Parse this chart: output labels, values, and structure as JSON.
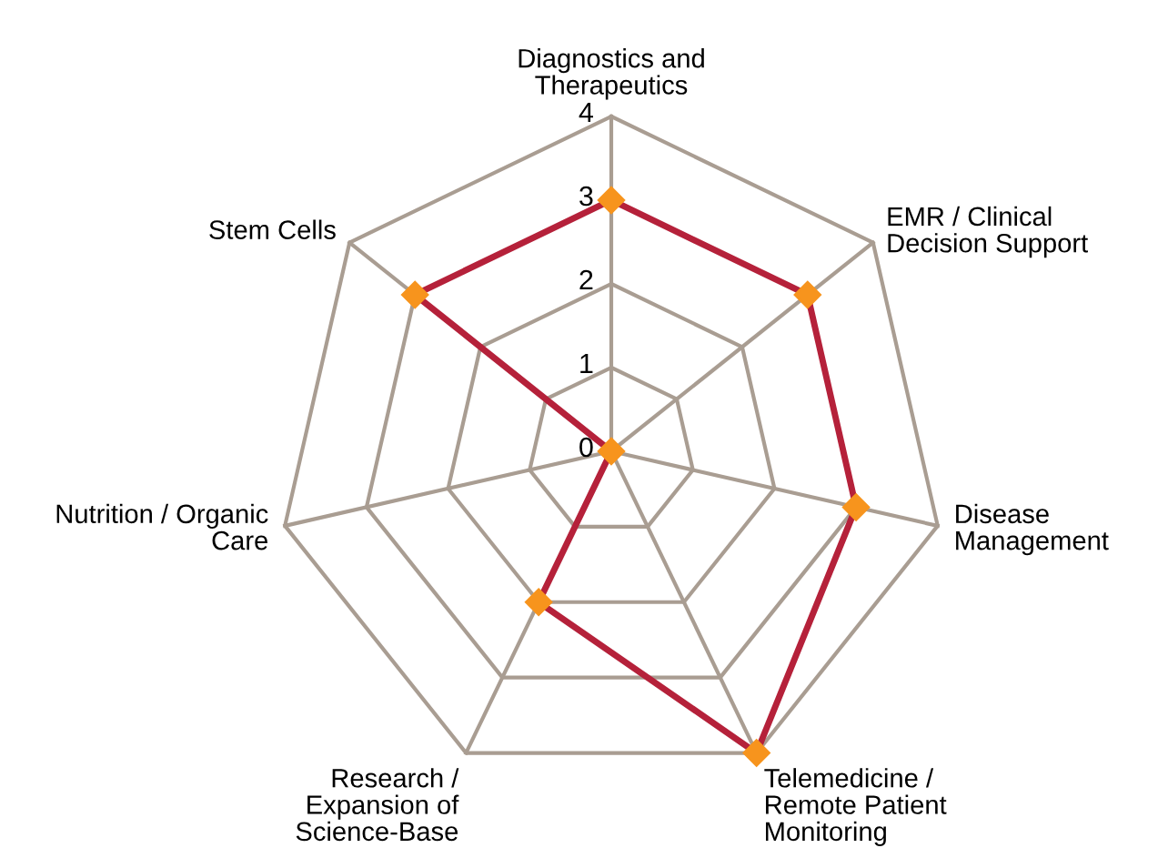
{
  "chart_data": {
    "type": "radar",
    "categories": [
      "Diagnostics and\nTherapeutics",
      "EMR / Clinical\nDecision Support",
      "Disease\nManagement",
      "Telemedicine /\nRemote Patient\nMonitoring",
      "Research /\nExpansion of\nScience-Base",
      "Nutrition / Organic\nCare",
      "Stem Cells"
    ],
    "series": [
      {
        "color": "#b5213a",
        "values": [
          3,
          3,
          3,
          4,
          2,
          0,
          3
        ]
      }
    ],
    "marker": "diamond",
    "line_style": "solid",
    "ylim": [
      0,
      4
    ],
    "yticks": [
      0,
      1,
      2,
      3,
      4
    ],
    "grid": true
  }
}
